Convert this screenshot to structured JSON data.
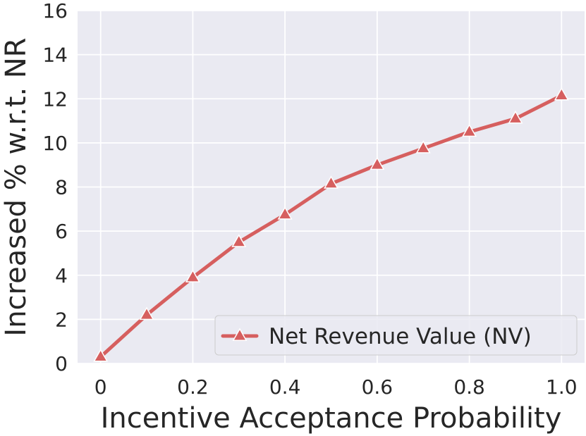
{
  "chart_data": {
    "type": "line",
    "x": [
      0,
      0.1,
      0.2,
      0.3,
      0.4,
      0.5,
      0.6,
      0.7,
      0.8,
      0.9,
      1.0
    ],
    "series": [
      {
        "name": "Net Revenue Value (NV)",
        "values": [
          0.3,
          2.2,
          3.9,
          5.5,
          6.75,
          8.15,
          9.0,
          9.75,
          10.5,
          11.1,
          12.15
        ],
        "color": "#d65f5f",
        "marker": "triangle"
      }
    ],
    "xlabel": "Incentive Acceptance Probability",
    "ylabel": "Increased % w.r.t. NR",
    "xlim": [
      -0.05,
      1.05
    ],
    "ylim": [
      0,
      16
    ],
    "xticks": [
      0,
      0.2,
      0.4,
      0.6,
      0.8,
      1.0
    ],
    "xtick_labels": [
      "0",
      "0.2",
      "0.4",
      "0.6",
      "0.8",
      "1.0"
    ],
    "yticks": [
      0,
      2,
      4,
      6,
      8,
      10,
      12,
      14,
      16
    ],
    "ytick_labels": [
      "0",
      "2",
      "4",
      "6",
      "8",
      "10",
      "12",
      "14",
      "16"
    ],
    "grid": true,
    "legend_position": "bottom-right",
    "background_color": "#eaeaf2",
    "grid_color": "#ffffff"
  }
}
